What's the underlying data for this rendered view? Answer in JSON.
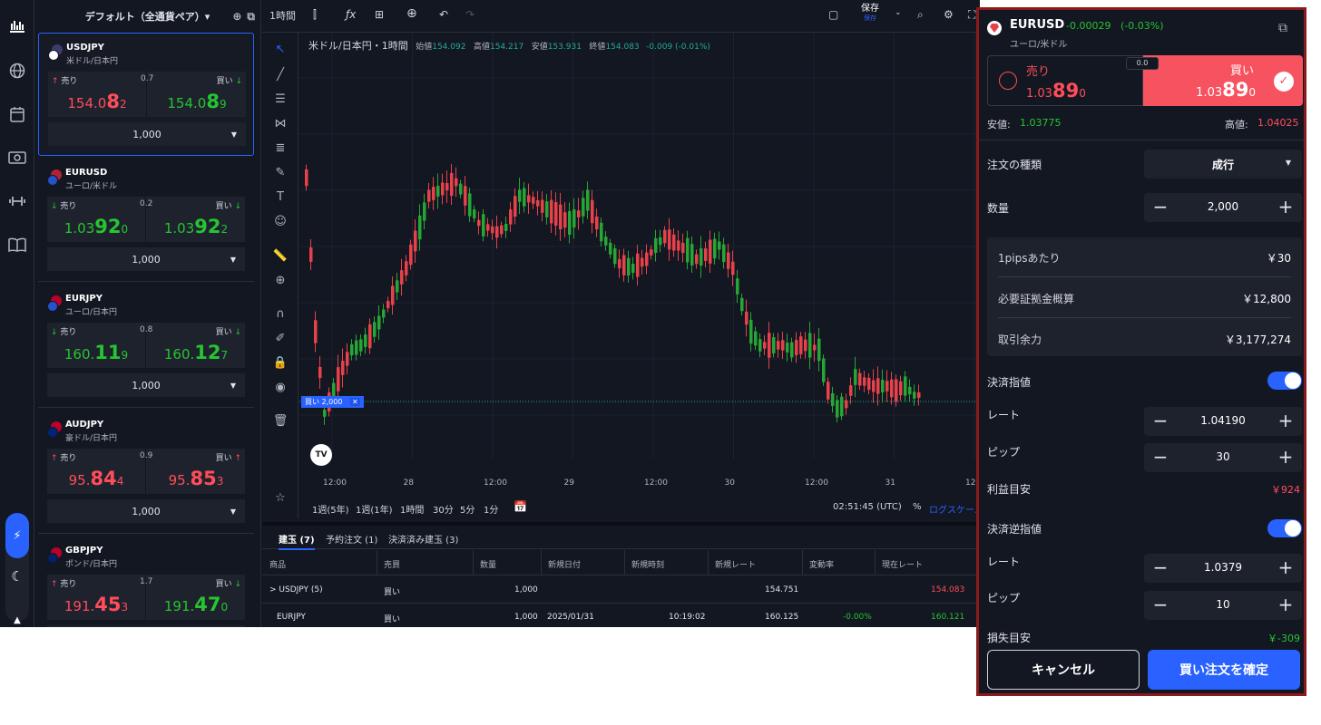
{
  "watchlist": {
    "title": "デフォルト（全通貨ペア）▾",
    "pairs": [
      {
        "symbol": "USDJPY",
        "name": "米ドル/日本円",
        "sell": "売り",
        "buy": "買い",
        "spread": "0.7",
        "bid_pre": "154.0",
        "bid_big": "8",
        "bid_post": "2",
        "ask_pre": "154.0",
        "ask_big": "8",
        "ask_post": "9",
        "qty": "1,000",
        "bid_color": "#ff4d5a",
        "ask_color": "#26c431",
        "sell_arrow": "↑",
        "buy_arrow": "↓",
        "sell_arrow_color": "#ff4d5a",
        "buy_arrow_color": "#26c431"
      },
      {
        "symbol": "EURUSD",
        "name": "ユーロ/米ドル",
        "sell": "売り",
        "buy": "買い",
        "spread": "0.2",
        "bid_pre": "1.03",
        "bid_big": "92",
        "bid_post": "0",
        "ask_pre": "1.03",
        "ask_big": "92",
        "ask_post": "2",
        "qty": "1,000",
        "bid_color": "#26c431",
        "ask_color": "#26c431",
        "sell_arrow": "↓",
        "buy_arrow": "↓",
        "sell_arrow_color": "#26c431",
        "buy_arrow_color": "#26c431"
      },
      {
        "symbol": "EURJPY",
        "name": "ユーロ/日本円",
        "sell": "売り",
        "buy": "買い",
        "spread": "0.8",
        "bid_pre": "160.",
        "bid_big": "11",
        "bid_post": "9",
        "ask_pre": "160.",
        "ask_big": "12",
        "ask_post": "7",
        "qty": "1,000",
        "bid_color": "#26c431",
        "ask_color": "#26c431",
        "sell_arrow": "↓",
        "buy_arrow": "↓",
        "sell_arrow_color": "#26c431",
        "buy_arrow_color": "#26c431"
      },
      {
        "symbol": "AUDJPY",
        "name": "豪ドル/日本円",
        "sell": "売り",
        "buy": "買い",
        "spread": "0.9",
        "bid_pre": "95.",
        "bid_big": "84",
        "bid_post": "4",
        "ask_pre": "95.",
        "ask_big": "85",
        "ask_post": "3",
        "qty": "1,000",
        "bid_color": "#ff4d5a",
        "ask_color": "#ff4d5a",
        "sell_arrow": "↑",
        "buy_arrow": "↑",
        "sell_arrow_color": "#ff4d5a",
        "buy_arrow_color": "#ff4d5a"
      },
      {
        "symbol": "GBPJPY",
        "name": "ポンド/日本円",
        "sell": "売り",
        "buy": "買い",
        "spread": "1.7",
        "bid_pre": "191.",
        "bid_big": "45",
        "bid_post": "3",
        "ask_pre": "191.",
        "ask_big": "47",
        "ask_post": "0",
        "qty": "1,000",
        "bid_color": "#ff4d5a",
        "ask_color": "#26c431",
        "sell_arrow": "↑",
        "buy_arrow": "↓",
        "sell_arrow_color": "#ff4d5a",
        "buy_arrow_color": "#26c431"
      }
    ]
  },
  "toolbar": {
    "interval": "1時間",
    "save": "保存",
    "save_sub": "保存"
  },
  "chart_legend": {
    "title": "米ドル/日本円・1時間",
    "open_l": "始値",
    "open": "154.092",
    "high_l": "高値",
    "high": "154.217",
    "low_l": "安値",
    "low": "153.931",
    "close_l": "終値",
    "close": "154.083",
    "chg": "-0.009 (-0.01%)"
  },
  "chart": {
    "x_labels": [
      "12:00",
      "28",
      "12:00",
      "29",
      "12:00",
      "30",
      "12:00",
      "31",
      "12"
    ],
    "order_line_label": "買い 2,000",
    "tv_logo": "TV"
  },
  "bottombar": {
    "r1": "1週(5年)",
    "r2": "1週(1年)",
    "r3": "1時間",
    "r4": "30分",
    "r5": "5分",
    "r6": "1分",
    "time": "02:51:45 (UTC)",
    "pct": "%",
    "log": "ログスケール"
  },
  "positions": {
    "tabs": [
      "建玉 (7)",
      "予約注文 (1)",
      "決済済み建玉 (3)"
    ],
    "headers": [
      "商品",
      "売買",
      "数量",
      "新規日付",
      "新規時刻",
      "新規レート",
      "変動率",
      "現在レート"
    ],
    "rows": [
      {
        "item": "> USDJPY (5)",
        "side": "買い",
        "qty": "1,000",
        "date": "",
        "time": "",
        "rate": "154.751",
        "chg": "",
        "cur": "154.083",
        "cur_color": "#ff4d5a"
      },
      {
        "item": "EURJPY",
        "side": "買い",
        "qty": "1,000",
        "date": "2025/01/31",
        "time": "10:19:02",
        "rate": "160.125",
        "chg": "-0.00%",
        "cur": "160.121",
        "cur_color": "#26c431"
      }
    ]
  },
  "order": {
    "symbol": "EURUSD",
    "change": "-0.00029",
    "change_pct": "(-0.03%)",
    "name": "ユーロ/米ドル",
    "sell_label": "売り",
    "sell_pre": "1.03",
    "sell_big": "89",
    "sell_post": "0",
    "buy_label": "買い",
    "buy_pre": "1.03",
    "buy_big": "89",
    "buy_post": "0",
    "spread": "0.0",
    "low_label": "安値:",
    "low": "1.03775",
    "high_label": "高値:",
    "high": "1.04025",
    "type_label": "注文の種類",
    "type_value": "成行",
    "qty_label": "数量",
    "qty_value": "2,000",
    "info": [
      {
        "label": "1pipsあたり",
        "value": "￥30"
      },
      {
        "label": "必要証拠金概算",
        "value": "￥12,800"
      },
      {
        "label": "取引余力",
        "value": "￥3,177,274"
      }
    ],
    "tp_label": "決済指値",
    "tp_rate_label": "レート",
    "tp_rate": "1.04190",
    "tp_pip_label": "ピップ",
    "tp_pip": "30",
    "tp_est_label": "利益目安",
    "tp_est": "￥924",
    "sl_label": "決済逆指値",
    "sl_rate_label": "レート",
    "sl_rate": "1.0379",
    "sl_pip_label": "ピップ",
    "sl_pip": "10",
    "sl_est_label": "損失目安",
    "sl_est": "￥-309",
    "cancel": "キャンセル",
    "confirm": "買い注文を確定"
  }
}
